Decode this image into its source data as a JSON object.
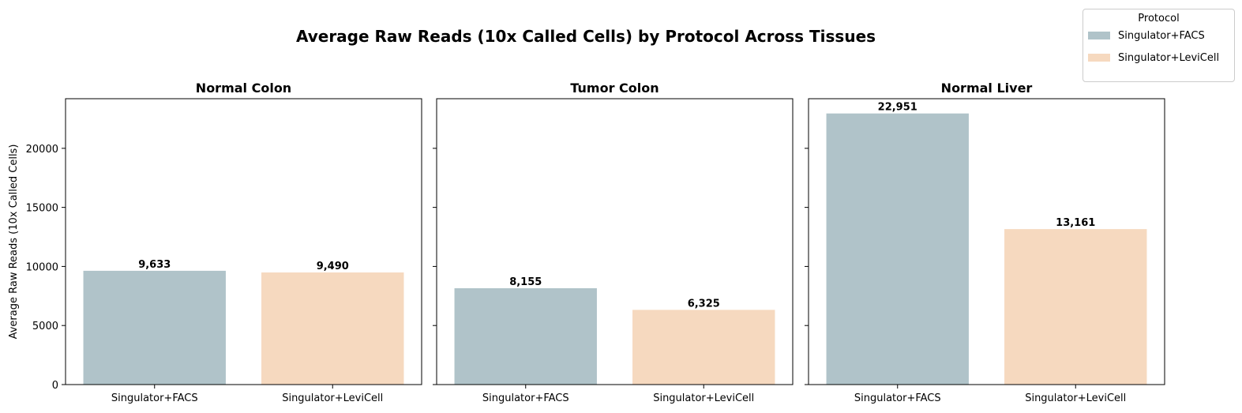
{
  "chart_data": {
    "type": "bar",
    "title": "Average Raw Reads (10x Called Cells) by Protocol Across Tissues",
    "ylabel": "Average Raw Reads (10x Called Cells)",
    "ylim": [
      0,
      24200
    ],
    "yticks": [
      0,
      5000,
      10000,
      15000,
      20000
    ],
    "grid": false,
    "legend": {
      "title": "Protocol",
      "placement": "top-right",
      "entries": [
        {
          "label": "Singulator+FACS",
          "color": "#b0c3c9"
        },
        {
          "label": "Singulator+LeviCell",
          "color": "#f6d9bf"
        }
      ]
    },
    "panels": [
      {
        "title": "Normal Colon",
        "categories": [
          "Singulator+FACS",
          "Singulator+LeviCell"
        ],
        "values": [
          9633,
          9490
        ],
        "labels": [
          "9,633",
          "9,490"
        ]
      },
      {
        "title": "Tumor Colon",
        "categories": [
          "Singulator+FACS",
          "Singulator+LeviCell"
        ],
        "values": [
          8155,
          6325
        ],
        "labels": [
          "8,155",
          "6,325"
        ]
      },
      {
        "title": "Normal Liver",
        "categories": [
          "Singulator+FACS",
          "Singulator+LeviCell"
        ],
        "values": [
          22951,
          13161
        ],
        "labels": [
          "22,951",
          "13,161"
        ]
      }
    ]
  }
}
